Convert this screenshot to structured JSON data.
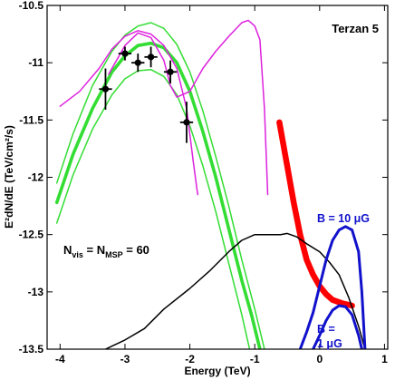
{
  "chart_data": {
    "type": "line",
    "title": "Terzan 5",
    "xlabel": "Energy (TeV)",
    "ylabel": "E²dN/dE (TeV/cm²/s)",
    "xlim": [
      -4.2,
      1.05
    ],
    "ylim": [
      -13.5,
      -10.5
    ],
    "xticks": [
      -4,
      -3,
      -2,
      -1,
      0,
      1
    ],
    "yticks": [
      -13.5,
      -13,
      -12.5,
      -12,
      -11.5,
      -11,
      -10.5
    ],
    "xtick_labels": [
      "-4",
      "-3",
      "-2",
      "-1",
      "0",
      "1"
    ],
    "ytick_labels": [
      "-13.5",
      "-13",
      "-12.5",
      "-12",
      "-11.5",
      "-11",
      "-10.5"
    ],
    "grid": false,
    "annotations": {
      "nvis": {
        "N": "N",
        "vis": "vis",
        "eq": " = N",
        "msp": "MSP",
        "val": " = 60"
      },
      "b10": "B = 10 μG",
      "b1_line1": "B =",
      "b1_line2": "1 μG"
    },
    "colors": {
      "green": "#33dd33",
      "magenta": "#dd22dd",
      "red": "#ff0000",
      "blue": "#1111cc",
      "black": "#000000"
    },
    "series": [
      {
        "color": "green",
        "width": 3.6,
        "points": [
          [
            -4.05,
            -12.22
          ],
          [
            -3.8,
            -11.8
          ],
          [
            -3.5,
            -11.4
          ],
          [
            -3.2,
            -11.08
          ],
          [
            -3.0,
            -10.94
          ],
          [
            -2.8,
            -10.85
          ],
          [
            -2.6,
            -10.83
          ],
          [
            -2.4,
            -10.87
          ],
          [
            -2.2,
            -11.0
          ],
          [
            -2.0,
            -11.25
          ],
          [
            -1.8,
            -11.6
          ],
          [
            -1.6,
            -12.0
          ],
          [
            -1.4,
            -12.45
          ],
          [
            -1.2,
            -12.9
          ],
          [
            -1.05,
            -13.2
          ],
          [
            -0.92,
            -13.5
          ]
        ]
      },
      {
        "color": "green",
        "width": 1.5,
        "points": [
          [
            -4.05,
            -12.05
          ],
          [
            -3.8,
            -11.62
          ],
          [
            -3.5,
            -11.2
          ],
          [
            -3.2,
            -10.9
          ],
          [
            -3.0,
            -10.76
          ],
          [
            -2.8,
            -10.68
          ],
          [
            -2.6,
            -10.65
          ],
          [
            -2.4,
            -10.7
          ],
          [
            -2.2,
            -10.84
          ],
          [
            -2.0,
            -11.08
          ],
          [
            -1.8,
            -11.42
          ],
          [
            -1.6,
            -11.82
          ],
          [
            -1.4,
            -12.25
          ],
          [
            -1.2,
            -12.72
          ],
          [
            -1.0,
            -13.15
          ],
          [
            -0.85,
            -13.5
          ]
        ]
      },
      {
        "color": "green",
        "width": 1.5,
        "points": [
          [
            -4.05,
            -12.4
          ],
          [
            -3.8,
            -11.98
          ],
          [
            -3.5,
            -11.58
          ],
          [
            -3.2,
            -11.28
          ],
          [
            -3.0,
            -11.14
          ],
          [
            -2.8,
            -11.07
          ],
          [
            -2.6,
            -11.06
          ],
          [
            -2.4,
            -11.12
          ],
          [
            -2.2,
            -11.28
          ],
          [
            -2.0,
            -11.55
          ],
          [
            -1.8,
            -11.9
          ],
          [
            -1.6,
            -12.3
          ],
          [
            -1.4,
            -12.75
          ],
          [
            -1.2,
            -13.2
          ],
          [
            -1.08,
            -13.5
          ]
        ]
      },
      {
        "color": "magenta",
        "width": 1.5,
        "points": [
          [
            -4.0,
            -11.38
          ],
          [
            -3.7,
            -11.25
          ],
          [
            -3.4,
            -11.05
          ],
          [
            -3.2,
            -10.88
          ],
          [
            -3.0,
            -10.77
          ],
          [
            -2.8,
            -10.72
          ],
          [
            -2.6,
            -10.75
          ],
          [
            -2.4,
            -10.85
          ],
          [
            -2.2,
            -11.05
          ],
          [
            -2.05,
            -11.4
          ],
          [
            -1.95,
            -11.85
          ],
          [
            -1.88,
            -12.15
          ]
        ]
      },
      {
        "color": "magenta",
        "width": 1.5,
        "points": [
          [
            -3.25,
            -11.1
          ],
          [
            -3.0,
            -10.85
          ],
          [
            -2.8,
            -10.74
          ],
          [
            -2.6,
            -10.78
          ],
          [
            -2.4,
            -10.98
          ],
          [
            -2.3,
            -11.2
          ],
          [
            -2.2,
            -11.3
          ],
          [
            -2.0,
            -11.25
          ],
          [
            -1.8,
            -11.05
          ],
          [
            -1.6,
            -10.9
          ],
          [
            -1.4,
            -10.77
          ],
          [
            -1.2,
            -10.65
          ],
          [
            -1.1,
            -10.63
          ],
          [
            -1.0,
            -10.68
          ],
          [
            -0.92,
            -10.8
          ],
          [
            -0.85,
            -11.4
          ],
          [
            -0.8,
            -12.15
          ]
        ]
      },
      {
        "color": "red",
        "width": 6.5,
        "points": [
          [
            -0.62,
            -11.52
          ],
          [
            -0.5,
            -11.9
          ],
          [
            -0.4,
            -12.22
          ],
          [
            -0.3,
            -12.5
          ],
          [
            -0.2,
            -12.72
          ],
          [
            -0.1,
            -12.85
          ],
          [
            0.0,
            -12.95
          ],
          [
            0.1,
            -13.02
          ],
          [
            0.2,
            -13.07
          ],
          [
            0.35,
            -13.1
          ],
          [
            0.5,
            -13.12
          ]
        ]
      },
      {
        "color": "black",
        "width": 1.5,
        "points": [
          [
            -3.3,
            -13.5
          ],
          [
            -3.0,
            -13.42
          ],
          [
            -2.7,
            -13.32
          ],
          [
            -2.4,
            -13.15
          ],
          [
            -2.0,
            -12.97
          ],
          [
            -1.7,
            -12.82
          ],
          [
            -1.4,
            -12.65
          ],
          [
            -1.2,
            -12.55
          ],
          [
            -1.0,
            -12.5
          ],
          [
            -0.8,
            -12.5
          ],
          [
            -0.6,
            -12.5
          ],
          [
            -0.5,
            -12.49
          ],
          [
            -0.35,
            -12.52
          ],
          [
            -0.2,
            -12.58
          ],
          [
            0.0,
            -12.65
          ],
          [
            0.15,
            -12.74
          ],
          [
            0.3,
            -12.85
          ],
          [
            0.45,
            -13.05
          ],
          [
            0.6,
            -13.3
          ],
          [
            0.7,
            -13.5
          ]
        ]
      },
      {
        "color": "blue",
        "width": 3.0,
        "points": [
          [
            -0.3,
            -13.5
          ],
          [
            -0.2,
            -13.35
          ],
          [
            -0.1,
            -13.18
          ],
          [
            0.0,
            -12.95
          ],
          [
            0.1,
            -12.72
          ],
          [
            0.2,
            -12.55
          ],
          [
            0.3,
            -12.46
          ],
          [
            0.4,
            -12.43
          ],
          [
            0.5,
            -12.46
          ],
          [
            0.6,
            -12.65
          ],
          [
            0.65,
            -13.0
          ],
          [
            0.7,
            -13.5
          ]
        ]
      },
      {
        "color": "blue",
        "width": 3.0,
        "points": [
          [
            -0.1,
            -13.5
          ],
          [
            0.0,
            -13.38
          ],
          [
            0.1,
            -13.25
          ],
          [
            0.2,
            -13.16
          ],
          [
            0.3,
            -13.12
          ],
          [
            0.4,
            -13.13
          ],
          [
            0.5,
            -13.2
          ],
          [
            0.6,
            -13.38
          ],
          [
            0.65,
            -13.5
          ]
        ]
      }
    ],
    "data_points": [
      {
        "x": -3.3,
        "y": -11.23,
        "xerr": 0.1,
        "yerr_lo": 0.18,
        "yerr_hi": 0.18
      },
      {
        "x": -3.0,
        "y": -10.92,
        "xerr": 0.1,
        "yerr_lo": 0.06,
        "yerr_hi": 0.06
      },
      {
        "x": -2.8,
        "y": -11.0,
        "xerr": 0.1,
        "yerr_lo": 0.08,
        "yerr_hi": 0.08
      },
      {
        "x": -2.6,
        "y": -10.95,
        "xerr": 0.1,
        "yerr_lo": 0.09,
        "yerr_hi": 0.09
      },
      {
        "x": -2.3,
        "y": -11.08,
        "xerr": 0.1,
        "yerr_lo": 0.1,
        "yerr_hi": 0.1
      },
      {
        "x": -2.05,
        "y": -11.52,
        "xerr": 0.1,
        "yerr_lo": 0.18,
        "yerr_hi": 0.18
      }
    ]
  }
}
